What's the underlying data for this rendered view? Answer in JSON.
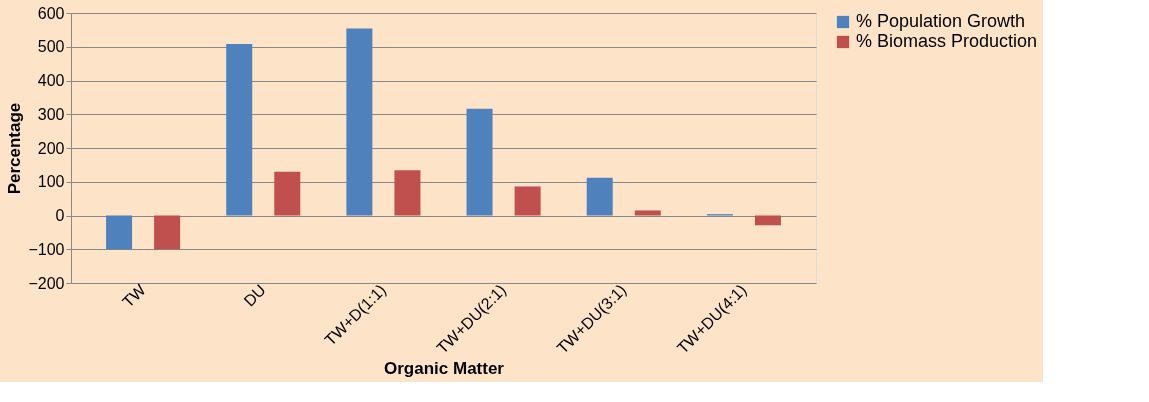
{
  "chart_data": {
    "type": "bar",
    "xlabel": "Organic Matter",
    "ylabel": "Percentage",
    "categories": [
      "TW",
      "DU",
      "TW+D(1:1)",
      "TW+DU(2:1)",
      "TW+DU(3:1)",
      "TW+DU(4:1)"
    ],
    "series": [
      {
        "name": "% Population Growth",
        "color": "#4f81bd",
        "values": [
          -100,
          508,
          554,
          316,
          112,
          4
        ]
      },
      {
        "name": "% Biomass Production",
        "color": "#c0504d",
        "values": [
          -100,
          130,
          134,
          86,
          15,
          -29
        ]
      }
    ],
    "ylim": [
      -200,
      600
    ],
    "yticks": [
      -200,
      -100,
      0,
      100,
      200,
      300,
      400,
      500,
      600
    ],
    "grid": "y",
    "legend": "right"
  }
}
